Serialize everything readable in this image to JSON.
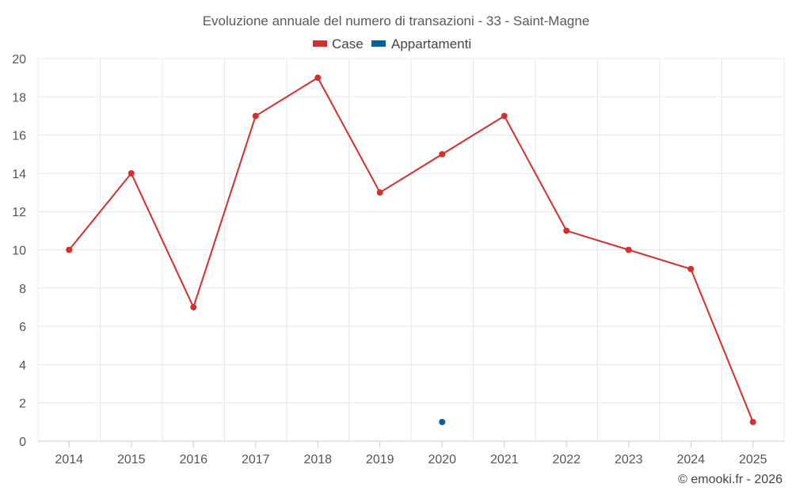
{
  "chart_data": {
    "type": "line",
    "title": "Evoluzione annuale del numero di transazioni - 33 - Saint-Magne",
    "categories": [
      "2014",
      "2015",
      "2016",
      "2017",
      "2018",
      "2019",
      "2020",
      "2021",
      "2022",
      "2023",
      "2024",
      "2025"
    ],
    "series": [
      {
        "name": "Case",
        "color": "#d32f2f",
        "values": [
          10,
          14,
          7,
          17,
          19,
          13,
          15,
          17,
          11,
          10,
          9,
          1
        ]
      },
      {
        "name": "Appartamenti",
        "color": "#0b5f9e",
        "values": [
          null,
          null,
          null,
          null,
          null,
          null,
          1,
          null,
          null,
          null,
          null,
          null
        ]
      }
    ],
    "ylim": [
      0,
      20
    ],
    "yticks": [
      "0",
      "2",
      "4",
      "6",
      "8",
      "10",
      "12",
      "14",
      "16",
      "18",
      "20"
    ],
    "grid": true,
    "legend": "top-center",
    "credit": "© emooki.fr - 2026"
  }
}
